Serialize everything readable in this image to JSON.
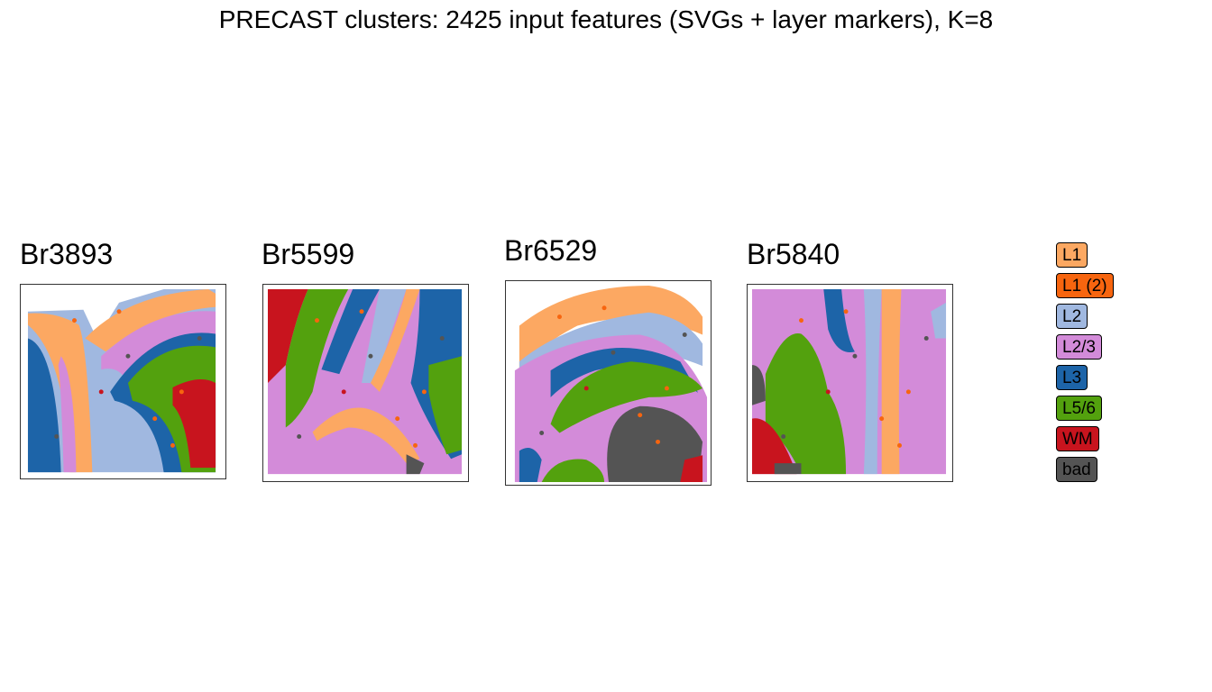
{
  "title": "PRECAST clusters: 2425 input features (SVGs + layer markers), K=8",
  "colors": {
    "L1": "#FCA862",
    "L1 (2)": "#F7650F",
    "L2": "#A0B8E0",
    "L2/3": "#D38BD9",
    "L3": "#1D64A8",
    "L5/6": "#53A10E",
    "WM": "#C8141E",
    "bad": "#545454"
  },
  "legend": [
    "L1",
    "L1 (2)",
    "L2",
    "L2/3",
    "L3",
    "L5/6",
    "WM",
    "bad"
  ],
  "chart_data": [
    {
      "type": "scatter",
      "title": "Br3893",
      "description_levels": "spatial spot map colored by cluster",
      "regions": [
        "L1",
        "L2",
        "L2/3",
        "L3",
        "L5/6",
        "WM",
        "bad"
      ]
    },
    {
      "type": "scatter",
      "title": "Br5599",
      "regions": [
        "WM",
        "L5/6",
        "L3",
        "L2/3",
        "L2",
        "L1",
        "bad"
      ]
    },
    {
      "type": "scatter",
      "title": "Br6529",
      "regions": [
        "L1",
        "L2",
        "L2/3",
        "L3",
        "L5/6",
        "WM",
        "bad"
      ]
    },
    {
      "type": "scatter",
      "title": "Br5840",
      "regions": [
        "L2/3",
        "L3",
        "L5/6",
        "L1",
        "WM",
        "bad"
      ]
    }
  ]
}
